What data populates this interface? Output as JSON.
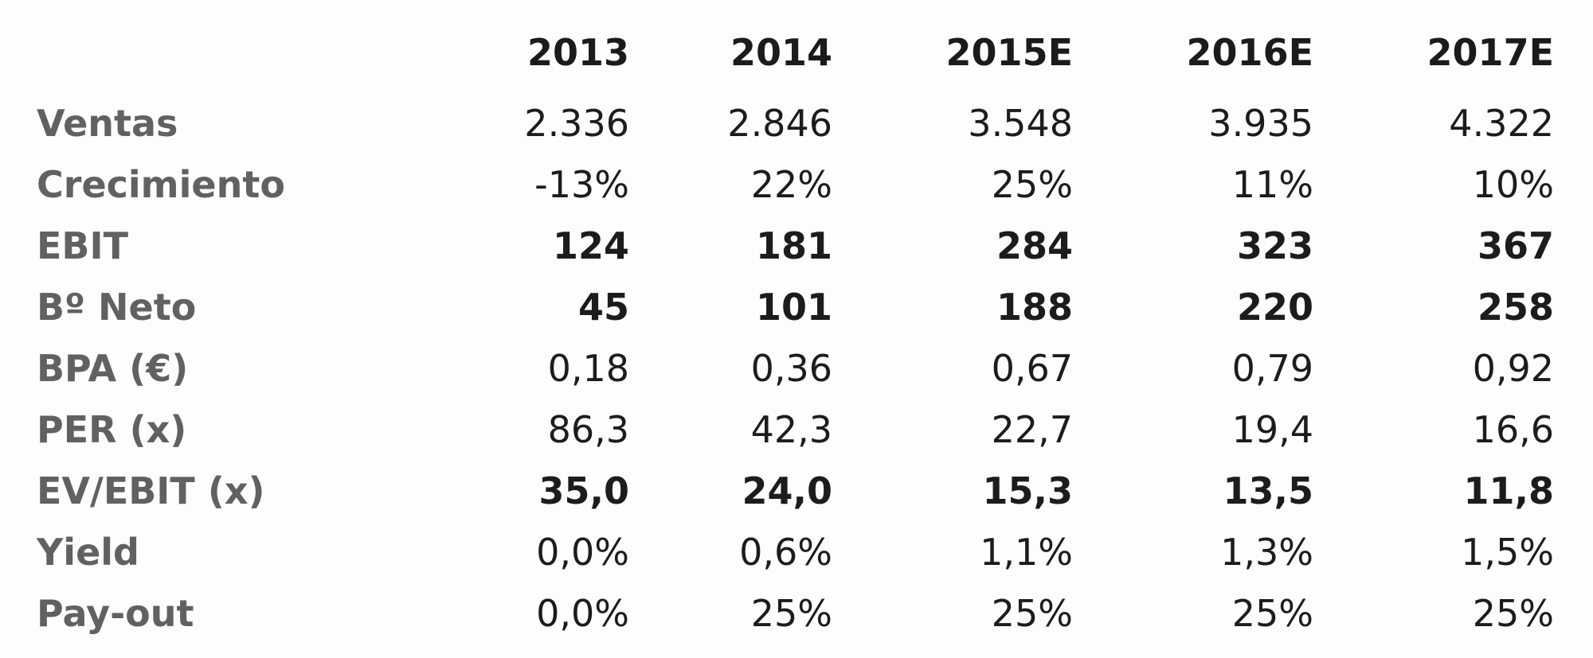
{
  "chart_data": {
    "type": "table",
    "columns": [
      "2013",
      "2014",
      "2015E",
      "2016E",
      "2017E"
    ],
    "rows": [
      {
        "label": "Ventas",
        "bold": false,
        "values": [
          "2.336",
          "2.846",
          "3.548",
          "3.935",
          "4.322"
        ]
      },
      {
        "label": "Crecimiento",
        "bold": false,
        "values": [
          "-13%",
          "22%",
          "25%",
          "11%",
          "10%"
        ]
      },
      {
        "label": "EBIT",
        "bold": true,
        "values": [
          "124",
          "181",
          "284",
          "323",
          "367"
        ]
      },
      {
        "label": "Bº Neto",
        "bold": true,
        "values": [
          "45",
          "101",
          "188",
          "220",
          "258"
        ]
      },
      {
        "label": "BPA (€)",
        "bold": false,
        "values": [
          "0,18",
          "0,36",
          "0,67",
          "0,79",
          "0,92"
        ]
      },
      {
        "label": "PER (x)",
        "bold": false,
        "values": [
          "86,3",
          "42,3",
          "22,7",
          "19,4",
          "16,6"
        ]
      },
      {
        "label": "EV/EBIT (x)",
        "bold": true,
        "values": [
          "35,0",
          "24,0",
          "15,3",
          "13,5",
          "11,8"
        ]
      },
      {
        "label": "Yield",
        "bold": false,
        "values": [
          "0,0%",
          "0,6%",
          "1,1%",
          "1,3%",
          "1,5%"
        ]
      },
      {
        "label": "Pay-out",
        "bold": false,
        "values": [
          "0,0%",
          "25%",
          "25%",
          "25%",
          "25%"
        ]
      }
    ]
  }
}
